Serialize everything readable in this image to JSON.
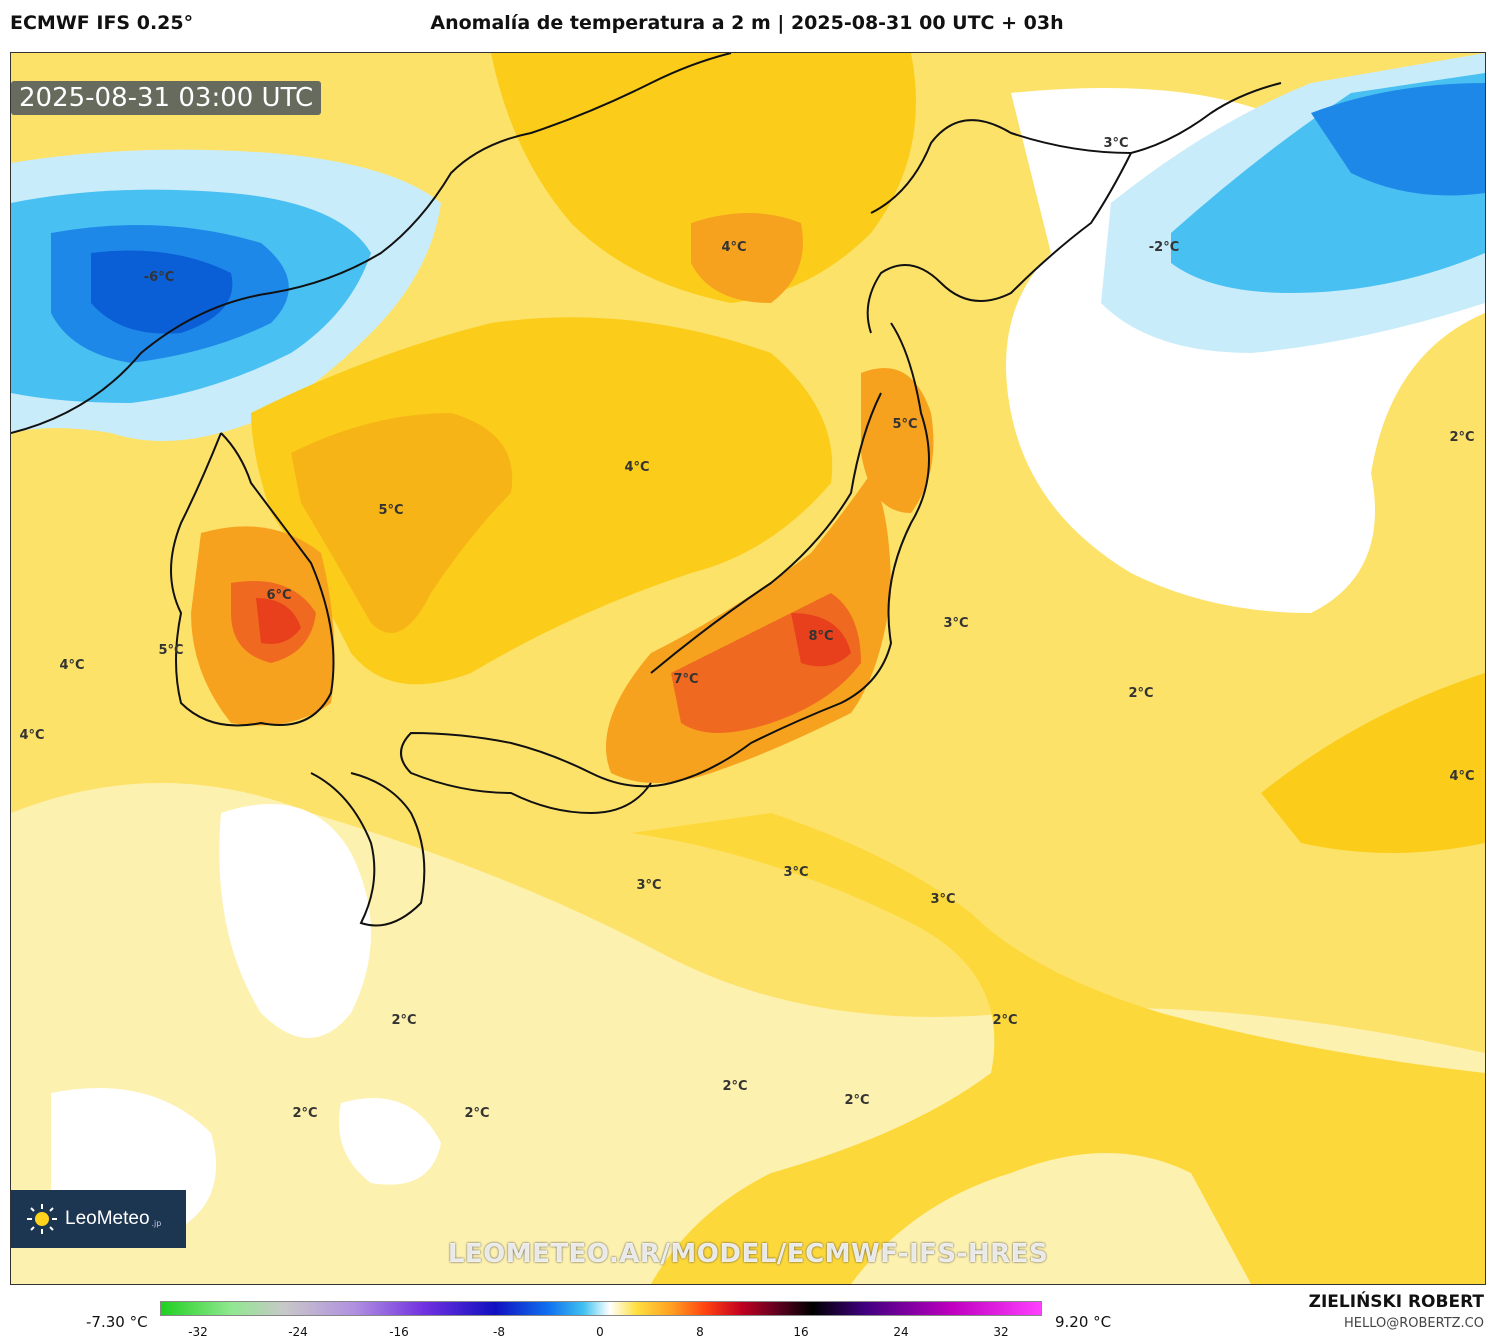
{
  "header": {
    "model": "ECMWF IFS 0.25°",
    "title": "Anomalía de temperatura a 2 m | 2025-08-31 00 UTC + 03h"
  },
  "map": {
    "valid_time": "2025-08-31 03:00 UTC",
    "watermark": "LEOMETEO.AR/MODEL/ECMWF-IFS-HRES",
    "logo": {
      "name": "LeoMeteo",
      "suffix": ".jp",
      "icon": "sun-icon"
    },
    "labels": {
      "l1": "-6°C",
      "l2": "4°C",
      "l3": "3°C",
      "l4": "-2°C",
      "l5": "5°C",
      "l6": "4°C",
      "l7": "5°C",
      "l8": "2°C",
      "l9": "6°C",
      "l10": "4°C",
      "l11": "5°C",
      "l12": "4°C",
      "l13": "3°C",
      "l14": "8°C",
      "l15": "7°C",
      "l16": "2°C",
      "l17": "4°C",
      "l18": "3°C",
      "l19": "3°C",
      "l20": "3°C",
      "l21": "2°C",
      "l22": "2°C",
      "l23": "2°C",
      "l24": "2°C",
      "l25": "2°C",
      "l26": "2°C"
    },
    "colors": {
      "warm_base": "#fde26a",
      "warm_mid": "#fbcd1a",
      "warm_high": "#f7a21e",
      "hot": "#ef6a20",
      "very_hot": "#e8401c",
      "neutral": "#ffffff",
      "cool_light": "#c9ecfa",
      "cool": "#49c0f2",
      "cold": "#1e88e8",
      "colder": "#0a5fd6"
    }
  },
  "colorbar": {
    "min_label": "-7.30 °C",
    "max_label": "9.20 °C",
    "ticks": [
      "-32",
      "-24",
      "-16",
      "-8",
      "0",
      "8",
      "16",
      "24",
      "32"
    ]
  },
  "credits": {
    "name": "ZIELIŃSKI ROBERT",
    "email": "HELLO@ROBERTZ.CO"
  }
}
